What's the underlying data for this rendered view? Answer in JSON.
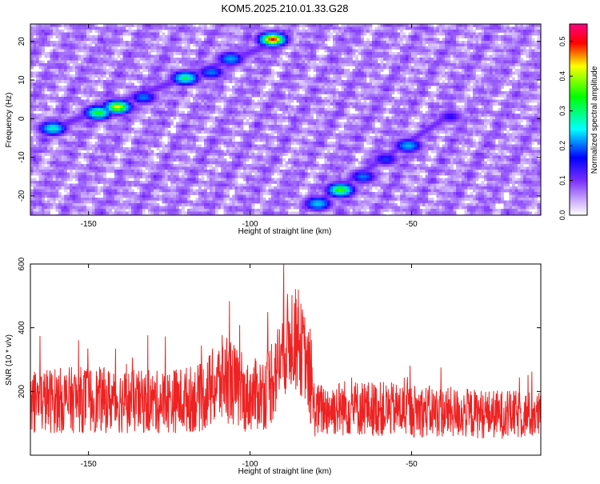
{
  "title": "KOM5.2025.210.01.33.G28",
  "chart_data": [
    {
      "type": "heatmap",
      "xlabel": "Height of straight line (km)",
      "ylabel": "Frequency (Hz)",
      "xlim": [
        -168,
        -10
      ],
      "ylim": [
        -25,
        24.5
      ],
      "xticks": [
        -150,
        -100,
        -50
      ],
      "yticks": [
        -20,
        -10,
        0,
        10,
        20
      ],
      "colorbar": {
        "label": "Normalized spectral amplitude",
        "range": [
          0,
          0.55
        ],
        "ticks": [
          0.0,
          0.1,
          0.2,
          0.3,
          0.4,
          0.5
        ],
        "tick_labels": [
          "0.0",
          "0.1",
          "0.2",
          "0.3",
          "0.4",
          "0.5"
        ],
        "colors": [
          "#ffffff",
          "#7b2fff",
          "#0000ff",
          "#00ffff",
          "#00ff00",
          "#ffff00",
          "#ff0000",
          "#ff0080"
        ]
      },
      "ridges": [
        {
          "from": [
            -161,
            -2.5
          ],
          "to": [
            -88,
            21
          ],
          "peaks": [
            [
              -161,
              -2.5,
              0.32
            ],
            [
              -147,
              1.5,
              0.38
            ],
            [
              -141,
              3,
              0.45
            ],
            [
              -133,
              5.5,
              0.22
            ],
            [
              -120,
              10.5,
              0.35
            ],
            [
              -112,
              12,
              0.22
            ],
            [
              -106,
              15.5,
              0.25
            ],
            [
              -93,
              20.5,
              0.5
            ]
          ]
        },
        {
          "from": [
            -80,
            -22
          ],
          "to": [
            -38,
            1
          ],
          "peaks": [
            [
              -79,
              -22,
              0.28
            ],
            [
              -72,
              -18.5,
              0.4
            ],
            [
              -65,
              -15,
              0.22
            ],
            [
              -58,
              -10.5,
              0.18
            ],
            [
              -51,
              -7,
              0.26
            ],
            [
              -38,
              0.5,
              0.15
            ]
          ]
        }
      ],
      "grid": false
    },
    {
      "type": "line",
      "xlabel": "Height of straight line (km)",
      "ylabel": "SNR (10 * v/v)",
      "xlim": [
        -168,
        -10
      ],
      "ylim": [
        0,
        600
      ],
      "xticks": [
        -150,
        -100,
        -50
      ],
      "yticks": [
        200,
        400,
        600
      ],
      "series": [
        {
          "color": "#ee2222",
          "envelope": [
            [
              -168,
              170
            ],
            [
              -150,
              175
            ],
            [
              -130,
              165
            ],
            [
              -115,
              180
            ],
            [
              -107,
              250
            ],
            [
              -102,
              180
            ],
            [
              -95,
              200
            ],
            [
              -90,
              320
            ],
            [
              -87,
              380
            ],
            [
              -83,
              310
            ],
            [
              -80,
              140
            ],
            [
              -70,
              150
            ],
            [
              -50,
              140
            ],
            [
              -30,
              130
            ],
            [
              -10,
              125
            ]
          ]
        }
      ],
      "grid": false
    }
  ]
}
